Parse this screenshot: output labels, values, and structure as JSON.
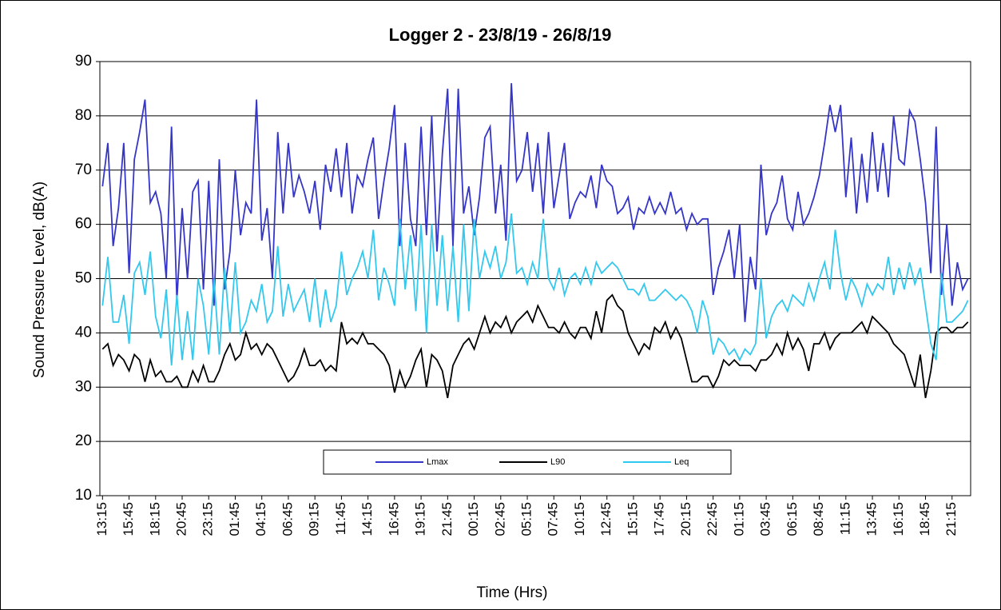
{
  "chart_data": {
    "type": "line",
    "title": "Logger 2 - 23/8/19 - 26/8/19",
    "y_label": "Sound Pressure Level, dB(A)",
    "x_label": "Time (Hrs)",
    "categories": [
      "13:15",
      null,
      null,
      null,
      null,
      "15:45",
      null,
      null,
      null,
      null,
      "18:15",
      null,
      null,
      null,
      null,
      "20:45",
      null,
      null,
      null,
      null,
      "23:15",
      null,
      null,
      null,
      null,
      "01:45",
      null,
      null,
      null,
      null,
      "04:15",
      null,
      null,
      null,
      null,
      "06:45",
      null,
      null,
      null,
      null,
      "09:15",
      null,
      null,
      null,
      null,
      "11:45",
      null,
      null,
      null,
      null,
      "14:15",
      null,
      null,
      null,
      null,
      "16:45",
      null,
      null,
      null,
      null,
      "19:15",
      null,
      null,
      null,
      null,
      "21:45",
      null,
      null,
      null,
      null,
      "00:15",
      null,
      null,
      null,
      null,
      "02:45",
      null,
      null,
      null,
      null,
      "05:15",
      null,
      null,
      null,
      null,
      "07:45",
      null,
      null,
      null,
      null,
      "10:15",
      null,
      null,
      null,
      null,
      "12:45",
      null,
      null,
      null,
      null,
      "15:15",
      null,
      null,
      null,
      null,
      "17:45",
      null,
      null,
      null,
      null,
      "20:15",
      null,
      null,
      null,
      null,
      "22:45",
      null,
      null,
      null,
      null,
      "01:15",
      null,
      null,
      null,
      null,
      "03:45",
      null,
      null,
      null,
      null,
      "06:15",
      null,
      null,
      null,
      null,
      "08:45",
      null,
      null,
      null,
      null,
      "11:15",
      null,
      null,
      null,
      null,
      "13:45",
      null,
      null,
      null,
      null,
      "16:15",
      null,
      null,
      null,
      null,
      "18:45",
      null,
      null,
      null,
      null,
      "21:15",
      null,
      null,
      null
    ],
    "series": [
      {
        "name": "Lmax",
        "color": "#3535c8",
        "values": [
          67,
          75,
          56,
          63,
          75,
          51,
          72,
          77,
          83,
          64,
          66,
          62,
          50,
          78,
          46,
          63,
          50,
          66,
          68,
          48,
          68,
          45,
          72,
          48,
          55,
          70,
          58,
          64,
          62,
          83,
          57,
          63,
          50,
          77,
          62,
          75,
          65,
          69,
          66,
          62,
          68,
          59,
          71,
          66,
          74,
          65,
          75,
          62,
          69,
          67,
          72,
          76,
          61,
          68,
          74,
          82,
          56,
          75,
          61,
          56,
          78,
          58,
          80,
          55,
          73,
          85,
          56,
          85,
          62,
          67,
          58,
          65,
          76,
          78,
          62,
          71,
          57,
          86,
          68,
          70,
          77,
          66,
          75,
          62,
          77,
          63,
          69,
          75,
          61,
          64,
          66,
          65,
          69,
          63,
          71,
          68,
          67,
          62,
          63,
          65,
          59,
          63,
          62,
          65,
          62,
          64,
          62,
          66,
          62,
          63,
          59,
          62,
          60,
          61,
          61,
          47,
          52,
          55,
          59,
          50,
          60,
          42,
          54,
          48,
          71,
          58,
          62,
          64,
          69,
          61,
          59,
          66,
          60,
          62,
          65,
          69,
          75,
          82,
          77,
          82,
          65,
          76,
          62,
          73,
          64,
          77,
          66,
          75,
          65,
          80,
          72,
          71,
          81,
          79,
          72,
          64,
          51,
          78,
          47,
          60,
          45,
          53,
          48,
          50
        ]
      },
      {
        "name": "L90",
        "color": "#000000",
        "values": [
          37,
          38,
          34,
          36,
          35,
          33,
          36,
          35,
          31,
          35,
          32,
          33,
          31,
          31,
          32,
          30,
          30,
          33,
          31,
          34,
          31,
          31,
          33,
          36,
          38,
          35,
          36,
          40,
          37,
          38,
          36,
          38,
          37,
          35,
          33,
          31,
          32,
          34,
          37,
          34,
          34,
          35,
          33,
          34,
          33,
          42,
          38,
          39,
          38,
          40,
          38,
          38,
          37,
          36,
          34,
          29,
          33,
          30,
          32,
          35,
          37,
          30,
          36,
          35,
          33,
          28,
          34,
          36,
          38,
          39,
          37,
          40,
          43,
          40,
          42,
          41,
          43,
          40,
          42,
          43,
          44,
          42,
          45,
          43,
          41,
          41,
          40,
          42,
          40,
          39,
          41,
          41,
          39,
          44,
          40,
          46,
          47,
          45,
          44,
          40,
          38,
          36,
          38,
          37,
          41,
          40,
          42,
          39,
          41,
          39,
          35,
          31,
          31,
          32,
          32,
          30,
          32,
          35,
          34,
          35,
          34,
          34,
          34,
          33,
          35,
          35,
          36,
          38,
          36,
          40,
          37,
          39,
          37,
          33,
          38,
          38,
          40,
          37,
          39,
          40,
          40,
          40,
          41,
          42,
          40,
          43,
          42,
          41,
          40,
          38,
          37,
          36,
          33,
          30,
          36,
          28,
          33,
          40,
          41,
          41,
          40,
          41,
          41,
          42
        ]
      },
      {
        "name": "Leq",
        "color": "#33c8ee",
        "values": [
          45,
          54,
          42,
          42,
          47,
          38,
          51,
          53,
          47,
          55,
          43,
          39,
          48,
          34,
          47,
          35,
          44,
          35,
          50,
          45,
          36,
          50,
          36,
          52,
          40,
          53,
          40,
          42,
          46,
          44,
          49,
          42,
          44,
          56,
          43,
          49,
          44,
          46,
          48,
          42,
          50,
          41,
          48,
          42,
          45,
          55,
          47,
          50,
          52,
          55,
          50,
          59,
          46,
          52,
          49,
          45,
          61,
          48,
          58,
          44,
          60,
          40,
          60,
          45,
          58,
          44,
          56,
          42,
          60,
          44,
          61,
          50,
          55,
          52,
          56,
          50,
          53,
          62,
          51,
          52,
          49,
          53,
          50,
          61,
          50,
          48,
          52,
          47,
          50,
          51,
          49,
          52,
          49,
          53,
          51,
          52,
          53,
          52,
          50,
          48,
          48,
          47,
          49,
          46,
          46,
          47,
          48,
          47,
          46,
          47,
          46,
          44,
          40,
          46,
          43,
          36,
          39,
          38,
          36,
          37,
          35,
          37,
          36,
          38,
          50,
          39,
          43,
          45,
          46,
          44,
          47,
          46,
          45,
          49,
          46,
          50,
          53,
          48,
          59,
          51,
          46,
          50,
          48,
          45,
          49,
          47,
          49,
          48,
          54,
          47,
          52,
          48,
          53,
          49,
          52,
          45,
          38,
          35,
          51,
          42,
          42,
          43,
          44,
          46
        ]
      }
    ],
    "ylim": [
      10,
      90
    ],
    "yticks": [
      10,
      20,
      30,
      40,
      50,
      60,
      70,
      80,
      90
    ],
    "grid": true
  }
}
